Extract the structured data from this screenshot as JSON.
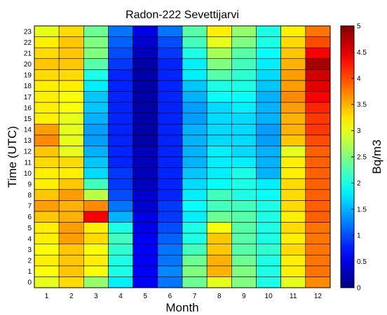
{
  "chart_data": {
    "type": "heatmap",
    "title": "Radon-222 Sevettijarvi",
    "xlabel": "Month",
    "ylabel": "Time (UTC)",
    "colorbar_label": "Bq/m3",
    "x": [
      "1",
      "2",
      "3",
      "4",
      "5",
      "6",
      "7",
      "8",
      "9",
      "10",
      "11",
      "12"
    ],
    "y": [
      "0",
      "1",
      "2",
      "3",
      "4",
      "5",
      "6",
      "7",
      "8",
      "9",
      "10",
      "11",
      "12",
      "13",
      "14",
      "15",
      "16",
      "17",
      "18",
      "19",
      "20",
      "21",
      "22",
      "23"
    ],
    "clim": [
      0,
      5
    ],
    "colorbar_ticks": [
      "0",
      "0.5",
      "1",
      "1.5",
      "2",
      "2.5",
      "3",
      "3.5",
      "4",
      "4.5",
      "5"
    ],
    "colormap": "jet",
    "values": [
      [
        3.0,
        3.3,
        2.6,
        1.8,
        0.6,
        1.2,
        2.4,
        3.0,
        2.5,
        2.0,
        3.0,
        3.7
      ],
      [
        3.1,
        3.4,
        3.1,
        2.0,
        0.6,
        1.3,
        2.5,
        3.5,
        2.5,
        2.0,
        3.2,
        3.8
      ],
      [
        3.2,
        3.4,
        3.2,
        2.0,
        0.6,
        1.2,
        2.4,
        3.5,
        2.4,
        2.0,
        3.2,
        3.8
      ],
      [
        3.1,
        3.4,
        3.1,
        2.1,
        0.6,
        1.2,
        2.2,
        3.4,
        2.3,
        2.1,
        3.3,
        3.8
      ],
      [
        3.2,
        3.6,
        3.3,
        2.2,
        0.6,
        1.1,
        2.0,
        3.4,
        2.3,
        2.0,
        3.2,
        3.8
      ],
      [
        3.2,
        3.6,
        3.2,
        2.0,
        0.5,
        1.0,
        2.0,
        3.1,
        2.3,
        2.0,
        3.3,
        3.8
      ],
      [
        3.4,
        3.5,
        4.4,
        1.5,
        0.5,
        0.9,
        1.8,
        2.4,
        2.3,
        2.0,
        3.2,
        3.9
      ],
      [
        3.6,
        3.5,
        3.7,
        1.2,
        0.4,
        0.9,
        1.9,
        2.2,
        2.2,
        2.0,
        3.3,
        3.9
      ],
      [
        3.4,
        3.6,
        2.8,
        1.0,
        0.4,
        0.8,
        1.8,
        2.2,
        2.0,
        1.9,
        3.3,
        3.9
      ],
      [
        3.2,
        3.4,
        2.2,
        0.9,
        0.3,
        0.8,
        1.7,
        1.9,
        2.0,
        1.8,
        3.3,
        3.9
      ],
      [
        3.2,
        3.2,
        1.7,
        0.9,
        0.3,
        0.8,
        1.6,
        1.8,
        2.0,
        1.5,
        3.2,
        3.9
      ],
      [
        3.3,
        3.3,
        1.6,
        0.8,
        0.3,
        0.8,
        1.5,
        1.8,
        1.8,
        1.5,
        3.2,
        3.9
      ],
      [
        3.4,
        3.0,
        1.5,
        0.8,
        0.3,
        0.8,
        1.5,
        1.8,
        1.7,
        1.5,
        3.0,
        3.9
      ],
      [
        3.7,
        3.0,
        1.4,
        0.8,
        0.2,
        0.8,
        1.5,
        1.7,
        1.7,
        1.4,
        3.4,
        4.0
      ],
      [
        3.6,
        3.0,
        1.4,
        0.8,
        0.2,
        0.8,
        1.5,
        1.7,
        1.7,
        1.4,
        3.5,
        4.1
      ],
      [
        3.2,
        3.0,
        1.5,
        0.8,
        0.2,
        0.8,
        1.4,
        1.7,
        1.7,
        1.5,
        3.5,
        4.1
      ],
      [
        3.2,
        3.1,
        1.6,
        0.8,
        0.2,
        0.8,
        1.4,
        1.7,
        1.8,
        1.5,
        3.6,
        4.2
      ],
      [
        3.2,
        3.1,
        1.6,
        0.8,
        0.2,
        0.8,
        1.5,
        1.9,
        1.9,
        1.5,
        3.7,
        4.4
      ],
      [
        3.2,
        3.2,
        1.8,
        0.8,
        0.2,
        0.8,
        1.6,
        2.0,
        2.0,
        1.6,
        3.6,
        4.5
      ],
      [
        3.3,
        3.3,
        2.0,
        0.8,
        0.2,
        0.8,
        1.8,
        2.3,
        2.1,
        1.7,
        3.6,
        4.6
      ],
      [
        3.4,
        3.4,
        2.3,
        0.9,
        0.2,
        0.8,
        1.8,
        2.5,
        2.2,
        1.8,
        3.5,
        4.8
      ],
      [
        3.3,
        3.4,
        2.5,
        1.0,
        0.3,
        0.9,
        2.0,
        2.7,
        2.3,
        1.9,
        3.4,
        4.4
      ],
      [
        3.2,
        3.4,
        2.5,
        1.1,
        0.4,
        1.0,
        2.2,
        3.0,
        2.5,
        2.0,
        3.3,
        4.0
      ],
      [
        3.0,
        3.3,
        2.4,
        1.2,
        0.5,
        1.2,
        2.3,
        3.2,
        2.6,
        2.0,
        3.2,
        3.8
      ]
    ]
  }
}
